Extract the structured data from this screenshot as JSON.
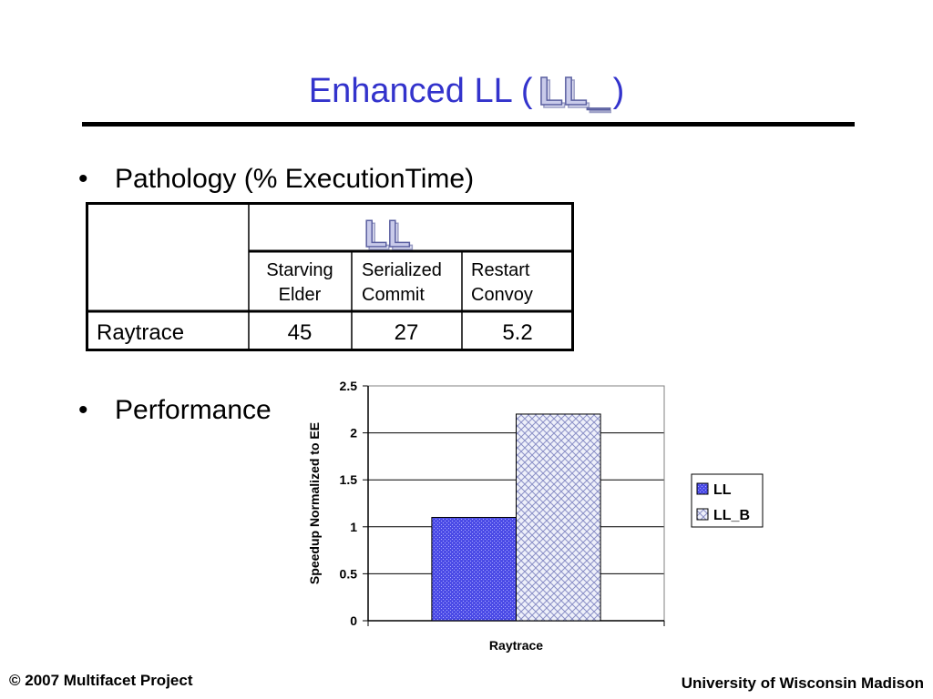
{
  "slide": {
    "title_prefix": "Enhanced LL (",
    "title_wordart": "LL_B",
    "title_suffix": ")",
    "bullets": [
      "Pathology (% ExecutionTime)",
      "Performance"
    ]
  },
  "table": {
    "group_header": "LL",
    "columns": [
      {
        "line1": "Starving",
        "line2": "Elder"
      },
      {
        "line1": "Serialized",
        "line2": "Commit"
      },
      {
        "line1": "Restart",
        "line2": "Convoy"
      }
    ],
    "row_label": "Raytrace",
    "row_values": [
      "45",
      "27",
      "5.2"
    ]
  },
  "colors": {
    "title": "#3333cc",
    "wordart_fill": "#c9cbea",
    "wordart_stroke": "#5a5fa0",
    "bar_ll": "#4b4be6",
    "bar_ll_b": "#d2d6ec"
  },
  "chart_data": {
    "type": "bar",
    "categories": [
      "Raytrace"
    ],
    "series": [
      {
        "name": "LL",
        "values": [
          1.1
        ]
      },
      {
        "name": "LL_B",
        "values": [
          2.2
        ]
      }
    ],
    "ylabel": "Speedup Normalized to EE",
    "xlabel": "",
    "ylim": [
      0,
      2.5
    ],
    "yticks": [
      "0",
      "0.5",
      "1",
      "1.5",
      "2",
      "2.5"
    ],
    "grid": true,
    "legend": "right"
  },
  "footer": {
    "left": "© 2007 Multifacet Project",
    "right": "University of Wisconsin Madison"
  }
}
